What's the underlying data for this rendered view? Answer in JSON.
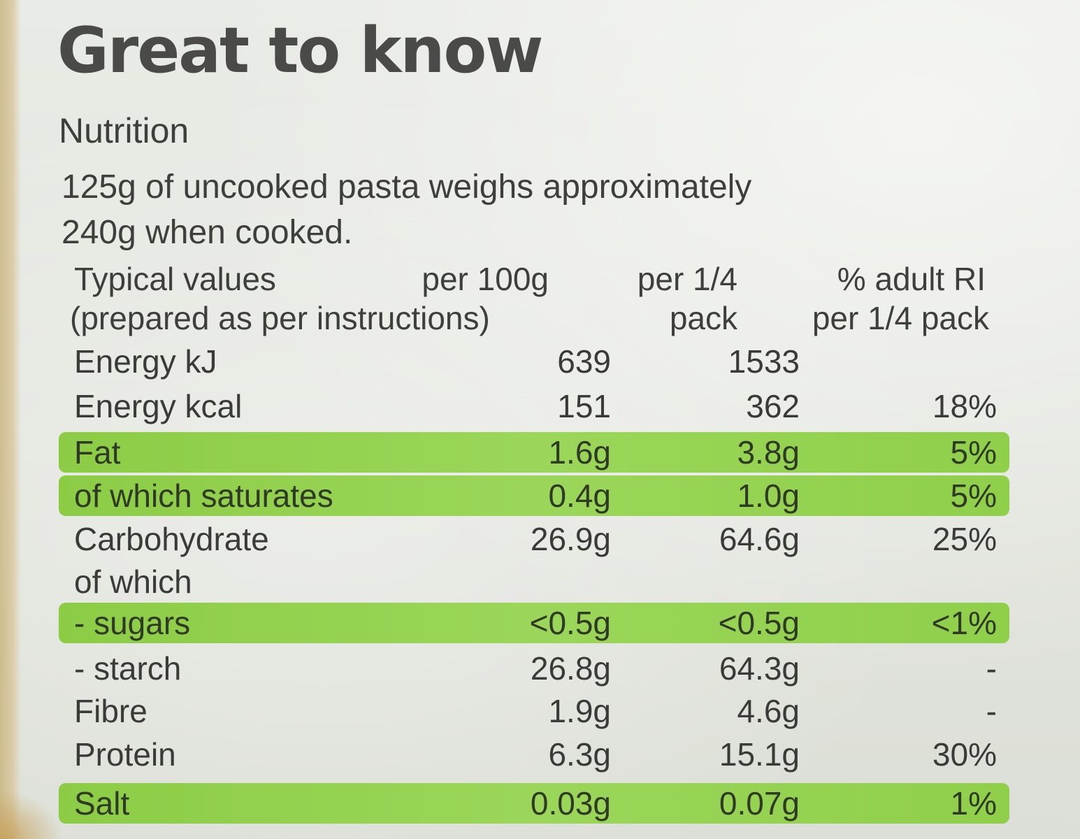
{
  "title": "Great to know",
  "subtitle": "Nutrition",
  "intro": {
    "line1": "125g of uncooked pasta weighs approximately",
    "line2": "240g when cooked."
  },
  "table": {
    "header": {
      "label_line1": "Typical values",
      "label_line2": "(prepared as per instructions)",
      "per100": "per 100g",
      "perquarter_line1": "per 1/4",
      "perquarter_line2": "pack",
      "ri_line1": "% adult RI",
      "ri_line2": "per 1/4 pack"
    },
    "rows": [
      {
        "label": "Energy kJ",
        "per100": "639",
        "perquarter": "1533",
        "ri": "",
        "highlight": false
      },
      {
        "label": "Energy kcal",
        "per100": "151",
        "perquarter": "362",
        "ri": "18%",
        "highlight": false
      },
      {
        "label": "Fat",
        "per100": "1.6g",
        "perquarter": "3.8g",
        "ri": "5%",
        "highlight": true
      },
      {
        "label": "of which saturates",
        "per100": "0.4g",
        "perquarter": "1.0g",
        "ri": "5%",
        "highlight": true
      },
      {
        "label": "Carbohydrate",
        "per100": "26.9g",
        "perquarter": "64.6g",
        "ri": "25%",
        "highlight": false
      },
      {
        "label": "of which",
        "per100": "",
        "perquarter": "",
        "ri": "",
        "highlight": false
      },
      {
        "label": "- sugars",
        "per100": "<0.5g",
        "perquarter": "<0.5g",
        "ri": "<1%",
        "highlight": true
      },
      {
        "label": "- starch",
        "per100": "26.8g",
        "perquarter": "64.3g",
        "ri": "-",
        "highlight": false
      },
      {
        "label": "Fibre",
        "per100": "1.9g",
        "perquarter": "4.6g",
        "ri": "-",
        "highlight": false
      },
      {
        "label": "Protein",
        "per100": "6.3g",
        "perquarter": "15.1g",
        "ri": "30%",
        "highlight": false
      },
      {
        "label": "Salt",
        "per100": "0.03g",
        "perquarter": "0.07g",
        "ri": "1%",
        "highlight": true
      }
    ]
  },
  "colors": {
    "highlight_green": "#9bd65a",
    "text_dark": "#3e3e3c",
    "background": "#e6e8e2"
  }
}
